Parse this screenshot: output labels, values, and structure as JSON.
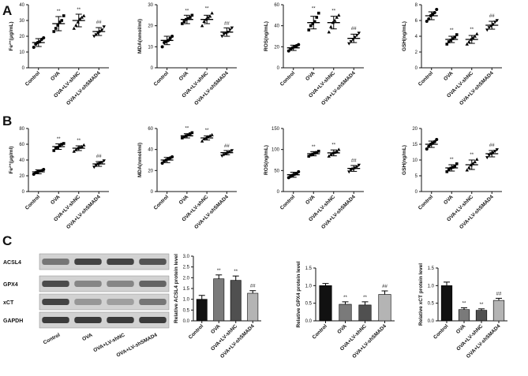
{
  "panels": [
    {
      "letter": "A"
    },
    {
      "letter": "B"
    },
    {
      "letter": "C"
    }
  ],
  "colors": {
    "bars": [
      "#111111",
      "#7a7a7a",
      "#505050",
      "#b4b4b4"
    ],
    "axis": "#111111",
    "band": "#2a2a2a",
    "blot_bg": "#d2d2d2"
  },
  "blot": {
    "rows": [
      "ACSL4",
      "GPX4",
      "xCT",
      "GAPDH"
    ],
    "lanes": [
      "Control",
      "OVA",
      "OVA+LV-shNC",
      "OVA+LV-shSMAD4"
    ]
  },
  "chart_data": [
    {
      "type": "scatter",
      "panel": "A",
      "ylabel": "Fe²⁺(μg/mL)",
      "ylim": [
        0,
        40
      ],
      "yticks": [
        0,
        10,
        20,
        30,
        40
      ],
      "categories": [
        "Control",
        "OVA",
        "OVA+LV-shNC",
        "OVA+LV-shSMAD4"
      ],
      "means": [
        16,
        28,
        30,
        23
      ],
      "sds": [
        2.5,
        4.5,
        4,
        2.5
      ],
      "points": [
        [
          13,
          15,
          16,
          16.5,
          18,
          19
        ],
        [
          23,
          25,
          27,
          29,
          30,
          33
        ],
        [
          25,
          27,
          29,
          31,
          32,
          33
        ],
        [
          20,
          21,
          22,
          23,
          24,
          26
        ]
      ],
      "annotations": [
        "",
        "**",
        "**",
        "##"
      ]
    },
    {
      "type": "scatter",
      "panel": "A",
      "ylabel": "MDA(nmol/ml)",
      "ylim": [
        0,
        30
      ],
      "yticks": [
        0,
        10,
        20,
        30
      ],
      "categories": [
        "Control",
        "OVA",
        "OVA+LV-shNC",
        "OVA+LV-shSMAD4"
      ],
      "means": [
        13,
        23,
        23,
        17
      ],
      "sds": [
        2,
        2,
        2,
        2
      ],
      "points": [
        [
          10,
          12,
          12.5,
          13,
          14,
          15
        ],
        [
          21,
          22,
          23,
          23.5,
          24,
          25
        ],
        [
          20,
          22,
          23,
          24,
          24.5,
          26
        ],
        [
          15,
          16,
          16.5,
          17,
          18,
          19
        ]
      ],
      "annotations": [
        "",
        "**",
        "**",
        "##"
      ]
    },
    {
      "type": "scatter",
      "panel": "A",
      "ylabel": "ROS(ng/mL)",
      "ylim": [
        0,
        60
      ],
      "yticks": [
        0,
        20,
        40,
        60
      ],
      "categories": [
        "Control",
        "OVA",
        "OVA+LV-shNC",
        "OVA+LV-shSMAD4"
      ],
      "means": [
        19,
        43,
        43,
        28
      ],
      "sds": [
        2.5,
        6,
        6,
        4
      ],
      "points": [
        [
          16,
          18,
          19,
          20,
          21,
          22
        ],
        [
          36,
          40,
          42,
          44,
          48,
          52
        ],
        [
          34,
          39,
          43,
          45,
          48,
          50
        ],
        [
          23,
          25,
          27,
          29,
          31,
          33
        ]
      ],
      "annotations": [
        "",
        "**",
        "**",
        "##"
      ]
    },
    {
      "type": "scatter",
      "panel": "A",
      "ylabel": "GSH(ng/mL)",
      "ylim": [
        0,
        8
      ],
      "yticks": [
        0,
        2,
        4,
        6,
        8
      ],
      "categories": [
        "Control",
        "OVA",
        "OVA+LV-shNC",
        "OVA+LV-shSMAD4"
      ],
      "means": [
        6.6,
        3.6,
        3.6,
        5.4
      ],
      "sds": [
        0.5,
        0.4,
        0.5,
        0.5
      ],
      "points": [
        [
          5.9,
          6.2,
          6.6,
          6.8,
          7.0,
          7.4
        ],
        [
          3.0,
          3.3,
          3.5,
          3.7,
          3.9,
          4.2
        ],
        [
          3.0,
          3.3,
          3.6,
          3.8,
          4.0,
          4.3
        ],
        [
          4.8,
          5.1,
          5.3,
          5.5,
          5.8,
          6.0
        ]
      ],
      "annotations": [
        "",
        "**",
        "**",
        "##"
      ]
    },
    {
      "type": "scatter",
      "panel": "B",
      "ylabel": "Fe²⁺(μg/ml)",
      "ylim": [
        0,
        80
      ],
      "yticks": [
        0,
        20,
        40,
        60,
        80
      ],
      "categories": [
        "Control",
        "OVA",
        "OVA+LV-shNC",
        "OVA+LV-shSMAD4"
      ],
      "means": [
        25,
        57,
        55,
        35
      ],
      "sds": [
        2.5,
        3.5,
        3,
        3
      ],
      "points": [
        [
          22,
          24,
          25,
          26,
          26.5,
          28
        ],
        [
          52,
          55,
          56,
          58,
          60,
          61
        ],
        [
          51,
          53,
          55,
          56,
          57,
          59
        ],
        [
          31,
          33,
          35,
          36,
          37,
          39
        ]
      ],
      "annotations": [
        "",
        "**",
        "**",
        "##"
      ]
    },
    {
      "type": "scatter",
      "panel": "B",
      "ylabel": "MDA(nmol/ml)",
      "ylim": [
        0,
        60
      ],
      "yticks": [
        0,
        20,
        40,
        60
      ],
      "categories": [
        "Control",
        "OVA",
        "OVA+LV-shNC",
        "OVA+LV-shSMAD4"
      ],
      "means": [
        30,
        53,
        51,
        37
      ],
      "sds": [
        2.5,
        2,
        2,
        2
      ],
      "points": [
        [
          27,
          29,
          30,
          31,
          32,
          33
        ],
        [
          51,
          52,
          53,
          54,
          55,
          56
        ],
        [
          48,
          50,
          51,
          52,
          53,
          54
        ],
        [
          34,
          35,
          36,
          37,
          38,
          39
        ]
      ],
      "annotations": [
        "",
        "**",
        "**",
        "##"
      ]
    },
    {
      "type": "scatter",
      "panel": "B",
      "ylabel": "ROS(ng/mL)",
      "ylim": [
        0,
        150
      ],
      "yticks": [
        0,
        50,
        100,
        150
      ],
      "categories": [
        "Control",
        "OVA",
        "OVA+LV-shNC",
        "OVA+LV-shSMAD4"
      ],
      "means": [
        40,
        90,
        92,
        55
      ],
      "sds": [
        6,
        5,
        7,
        7
      ],
      "points": [
        [
          33,
          36,
          39,
          41,
          43,
          47
        ],
        [
          84,
          87,
          89,
          91,
          93,
          96
        ],
        [
          84,
          88,
          91,
          93,
          96,
          100
        ],
        [
          47,
          51,
          54,
          56,
          59,
          63
        ]
      ],
      "annotations": [
        "",
        "**",
        "**",
        "##"
      ]
    },
    {
      "type": "scatter",
      "panel": "B",
      "ylabel": "GSH(ng/mL)",
      "ylim": [
        0,
        20
      ],
      "yticks": [
        0,
        5,
        10,
        15,
        20
      ],
      "categories": [
        "Control",
        "OVA",
        "OVA+LV-shNC",
        "OVA+LV-shSMAD4"
      ],
      "means": [
        15,
        7.5,
        8.5,
        12
      ],
      "sds": [
        1,
        1,
        1.5,
        1
      ],
      "points": [
        [
          13.5,
          14.3,
          15,
          15.3,
          15.8,
          16.5
        ],
        [
          6.3,
          6.9,
          7.4,
          7.7,
          8.1,
          8.8
        ],
        [
          6.8,
          7.6,
          8.4,
          8.9,
          9.4,
          10.2
        ],
        [
          10.8,
          11.5,
          12,
          12.3,
          12.8,
          13.3
        ]
      ],
      "annotations": [
        "",
        "**",
        "**",
        "##"
      ]
    },
    {
      "type": "bar",
      "panel": "C",
      "ylabel": "Relative ACSL4 protein level",
      "ylim": [
        0,
        3.0
      ],
      "yticks": [
        "0.0",
        "0.5",
        "1.0",
        "1.5",
        "2.0",
        "2.5",
        "3.0"
      ],
      "categories": [
        "Control",
        "OVA",
        "OVA+LV-shNC",
        "OVA+LV-shSMAD4"
      ],
      "values": [
        1.0,
        1.95,
        1.88,
        1.28
      ],
      "errors": [
        0.18,
        0.18,
        0.2,
        0.12
      ],
      "annotations": [
        "",
        "**",
        "**",
        "##"
      ]
    },
    {
      "type": "bar",
      "panel": "C",
      "ylabel": "Relative GPX4 protein level",
      "ylim": [
        0,
        1.5
      ],
      "yticks": [
        "0.0",
        "0.5",
        "1.0",
        "1.5"
      ],
      "categories": [
        "Control",
        "OVA",
        "OVA+LV-shNC",
        "OVA+LV-shSMAD4"
      ],
      "values": [
        1.0,
        0.47,
        0.45,
        0.75
      ],
      "errors": [
        0.06,
        0.07,
        0.09,
        0.1
      ],
      "annotations": [
        "",
        "**",
        "**",
        "##"
      ]
    },
    {
      "type": "bar",
      "panel": "C",
      "ylabel": "Relative xCT protein level",
      "ylim": [
        0,
        1.5
      ],
      "yticks": [
        "0.0",
        "0.5",
        "1.0",
        "1.5"
      ],
      "categories": [
        "Control",
        "OVA",
        "OVA+LV-shNC",
        "OVA+LV-shSMAD4"
      ],
      "values": [
        1.0,
        0.32,
        0.3,
        0.58
      ],
      "errors": [
        0.1,
        0.05,
        0.04,
        0.06
      ],
      "annotations": [
        "",
        "**",
        "**",
        "##"
      ]
    }
  ]
}
